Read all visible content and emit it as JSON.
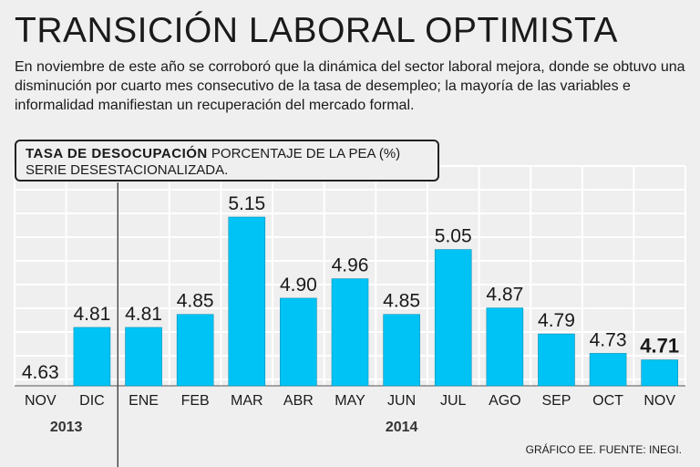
{
  "header": {
    "title": "TRANSICIÓN LABORAL OPTIMISTA",
    "subtitle": "En noviembre de este año se corroboró que la dinámica del sector laboral mejora, donde se obtuvo una disminución por cuarto mes consecutivo de la tasa de desempleo; la mayoría de las variables e informalidad manifiestan un recuperación del mercado formal."
  },
  "legend": {
    "bold_label": "TASA DE DESOCUPACIÓN",
    "label": " PORCENTAJE DE LA PEA (%)",
    "line2": "SERIE DESESTACIONALIZADA."
  },
  "footer": {
    "source": "GRÁFICO EE. FUENTE: INEGI."
  },
  "colors": {
    "bar": "#00c3f5",
    "bar_stroke": "#0a8fb5",
    "grid": "#ffffff",
    "text": "#1a1a1a"
  },
  "chart_data": {
    "type": "bar",
    "title": "TASA DE DESOCUPACIÓN",
    "ylabel": "PORCENTAJE DE LA PEA (%)",
    "categories": [
      "NOV",
      "DIC",
      "ENE",
      "FEB",
      "MAR",
      "ABR",
      "MAY",
      "JUN",
      "JUL",
      "AGO",
      "SEP",
      "OCT",
      "NOV"
    ],
    "values": [
      4.63,
      4.81,
      4.81,
      4.85,
      5.15,
      4.9,
      4.96,
      4.85,
      5.05,
      4.87,
      4.79,
      4.73,
      4.71
    ],
    "value_labels": [
      "4.63",
      "4.81",
      "4.81",
      "4.85",
      "5.15",
      "4.90",
      "4.96",
      "4.85",
      "5.05",
      "4.87",
      "4.79",
      "4.73",
      "4.71"
    ],
    "highlight_last": true,
    "year_groups": [
      {
        "label": "2013",
        "start": 0,
        "end": 1
      },
      {
        "label": "2014",
        "start": 2,
        "end": 12
      }
    ],
    "ylim": [
      4.5,
      5.25
    ],
    "grid": true
  }
}
